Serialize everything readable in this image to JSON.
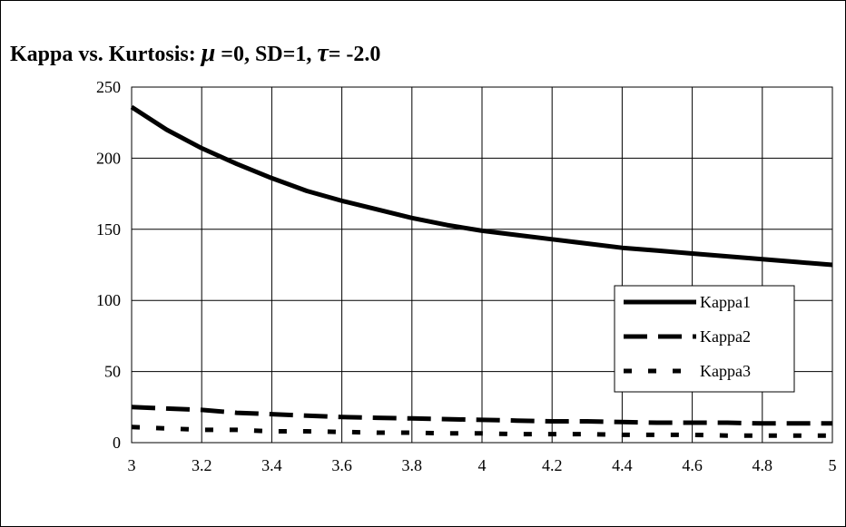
{
  "chart_data": {
    "type": "line",
    "title_prefix": "Kappa vs. Kurtosis: ",
    "title_mu": "μ",
    "title_mid": " =0, SD=1, ",
    "title_tau": "τ",
    "title_suffix": "= -2.0",
    "xlabel": "",
    "ylabel": "",
    "xlim": [
      3,
      5
    ],
    "ylim": [
      0,
      250
    ],
    "x_ticks": [
      "3",
      "3.2",
      "3.4",
      "3.6",
      "3.8",
      "4",
      "4.2",
      "4.4",
      "4.6",
      "4.8",
      "5"
    ],
    "y_ticks": [
      "0",
      "50",
      "100",
      "150",
      "200",
      "250"
    ],
    "grid": true,
    "legend_position": "right",
    "x": [
      3.0,
      3.1,
      3.2,
      3.3,
      3.4,
      3.5,
      3.6,
      3.7,
      3.8,
      3.9,
      4.0,
      4.1,
      4.2,
      4.3,
      4.4,
      4.5,
      4.6,
      4.7,
      4.8,
      4.9,
      5.0
    ],
    "series": [
      {
        "name": "Kappa1",
        "style": "solid",
        "values": [
          236,
          220,
          207,
          196,
          186,
          177,
          170,
          164,
          158,
          153,
          149,
          146,
          143,
          140,
          137,
          135,
          133,
          131,
          129,
          127,
          125
        ]
      },
      {
        "name": "Kappa2",
        "style": "dashed",
        "values": [
          25,
          24,
          23,
          21,
          20,
          19,
          18,
          17.5,
          17,
          16.5,
          16,
          15.5,
          15,
          15,
          14.5,
          14,
          14,
          14,
          13.5,
          13.5,
          13.5
        ]
      },
      {
        "name": "Kappa3",
        "style": "dotted",
        "values": [
          11,
          10,
          9,
          9,
          8,
          8,
          7.5,
          7,
          7,
          6.5,
          6.5,
          6,
          6,
          6,
          5.5,
          5.5,
          5.5,
          5,
          5,
          5,
          5
        ]
      }
    ]
  }
}
